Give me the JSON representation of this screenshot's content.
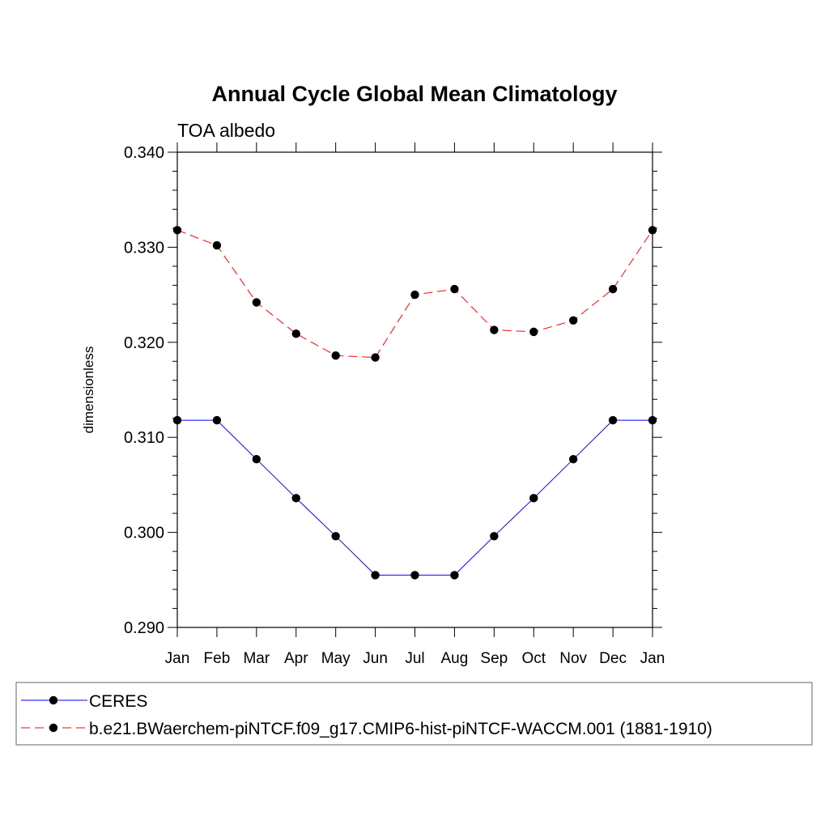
{
  "chart_data": {
    "type": "line",
    "title": "Annual Cycle Global Mean Climatology",
    "subtitle": "TOA albedo",
    "xlabel": "",
    "ylabel": "dimensionless",
    "categories": [
      "Jan",
      "Feb",
      "Mar",
      "Apr",
      "May",
      "Jun",
      "Jul",
      "Aug",
      "Sep",
      "Oct",
      "Nov",
      "Dec",
      "Jan"
    ],
    "ylim": [
      0.29,
      0.34
    ],
    "yticks": [
      "0.290",
      "0.300",
      "0.310",
      "0.320",
      "0.330",
      "0.340"
    ],
    "grid": false,
    "legend_position": "bottom",
    "series": [
      {
        "name": "CERES",
        "color": "#0000ff",
        "linestyle": "solid",
        "marker": "circle",
        "values": [
          0.3118,
          0.3118,
          0.3077,
          0.3036,
          0.2996,
          0.2955,
          0.2955,
          0.2955,
          0.2996,
          0.3036,
          0.3077,
          0.3118,
          0.3118
        ]
      },
      {
        "name": "b.e21.BWaerchem-piNTCF.f09_g17.CMIP6-hist-piNTCF-WACCM.001 (1881-1910)",
        "color": "#ff0000",
        "linestyle": "dashed",
        "marker": "circle",
        "values": [
          0.3318,
          0.3302,
          0.3242,
          0.3209,
          0.3186,
          0.3184,
          0.325,
          0.3256,
          0.3213,
          0.3211,
          0.3223,
          0.3256,
          0.3318
        ]
      }
    ]
  }
}
